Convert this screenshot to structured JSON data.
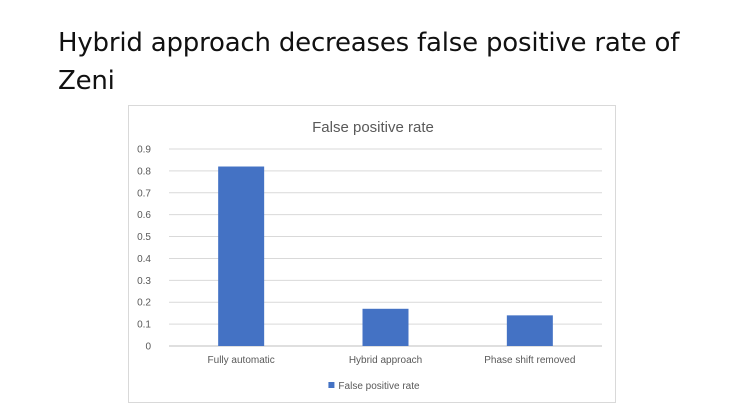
{
  "slide": {
    "title": "Hybrid approach decreases false positive rate of Zeni"
  },
  "chart_data": {
    "type": "bar",
    "title": "False positive rate",
    "categories": [
      "Fully automatic",
      "Hybrid approach",
      "Phase shift removed"
    ],
    "series": [
      {
        "name": "False positive rate",
        "values": [
          0.82,
          0.17,
          0.14
        ],
        "color": "#4472c4"
      }
    ],
    "ylim": [
      0,
      0.9
    ],
    "yticks": [
      "0",
      "0.1",
      "0.2",
      "0.3",
      "0.4",
      "0.5",
      "0.6",
      "0.7",
      "0.8",
      "0.9"
    ],
    "grid": true,
    "legend_position": "bottom"
  }
}
